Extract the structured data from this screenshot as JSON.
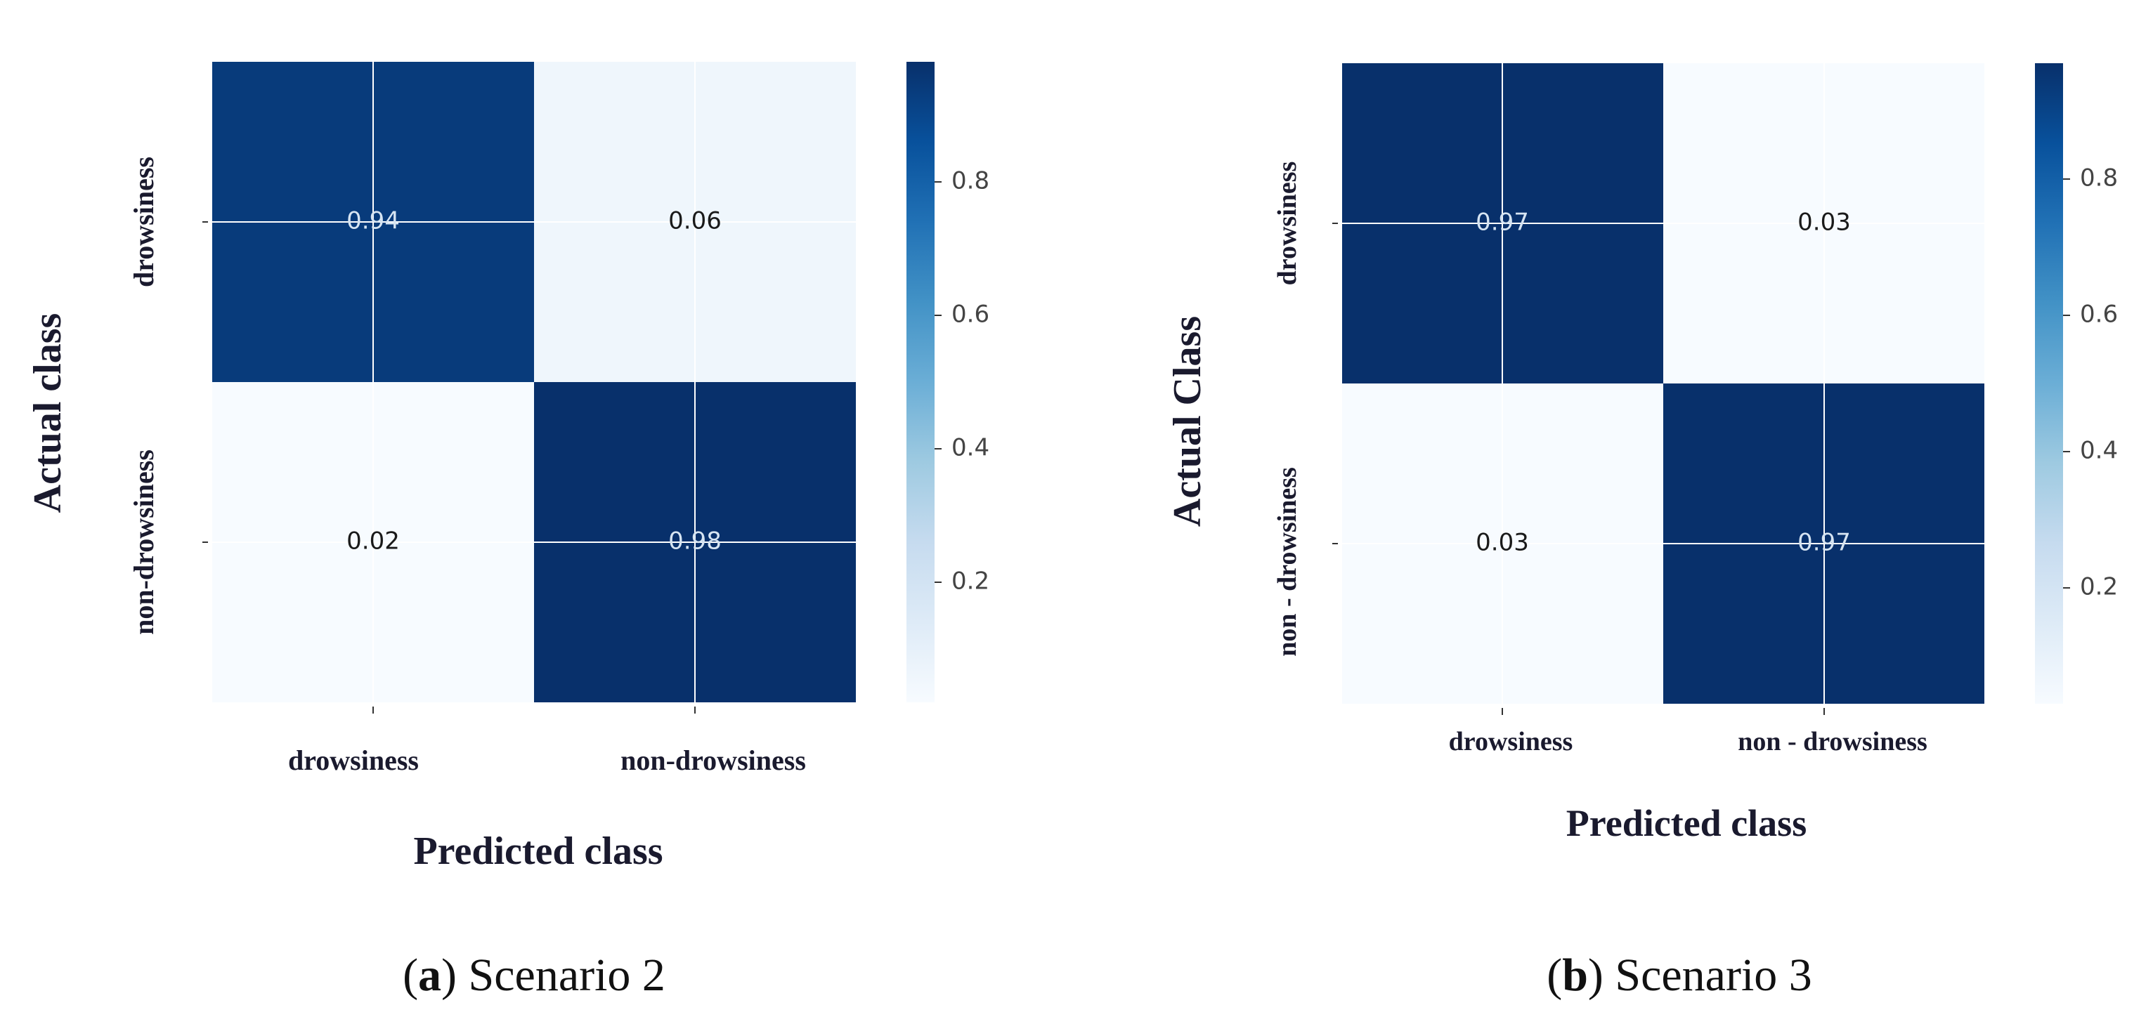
{
  "colorbar_ticks": [
    "0.2",
    "0.4",
    "0.6",
    "0.8"
  ],
  "chart_data": [
    {
      "type": "heatmap",
      "ylabel": "Actual class",
      "xlabel": "Predicted class",
      "x_categories": [
        "drowsiness",
        "non-drowsiness"
      ],
      "y_categories": [
        "drowsiness",
        "non-drowsiness"
      ],
      "values": [
        [
          0.94,
          0.06
        ],
        [
          0.02,
          0.98
        ]
      ],
      "value_labels": [
        [
          "0.94",
          "0.06"
        ],
        [
          "0.02",
          "0.98"
        ]
      ],
      "colorbar": {
        "range": [
          0.02,
          0.98
        ],
        "colormap": "Blues"
      },
      "grid": true,
      "caption_letter": "a",
      "caption_text": ") Scenario 2"
    },
    {
      "type": "heatmap",
      "ylabel": "Actual Class",
      "xlabel": "Predicted class",
      "x_categories": [
        "drowsiness",
        "non - drowsiness"
      ],
      "y_categories": [
        "drowsiness",
        "non - drowsiness"
      ],
      "values": [
        [
          0.97,
          0.03
        ],
        [
          0.03,
          0.97
        ]
      ],
      "value_labels": [
        [
          "0.97",
          "0.03"
        ],
        [
          "0.03",
          "0.97"
        ]
      ],
      "colorbar": {
        "range": [
          0.03,
          0.97
        ],
        "colormap": "Blues"
      },
      "grid": true,
      "caption_letter": "b",
      "caption_text": ") Scenario 3"
    }
  ]
}
